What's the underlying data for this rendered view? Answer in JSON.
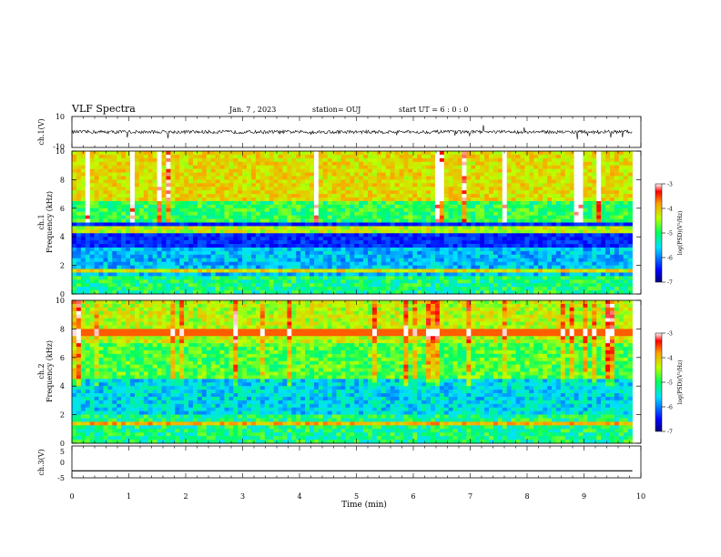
{
  "header": {
    "title": "VLF Spectra",
    "date": "Jan. 7 , 2023",
    "station": "station= OUJ",
    "start": "start UT =  6 : 0 : 0"
  },
  "chart_data": [
    {
      "type": "line",
      "panel": "ch1-waveform",
      "ylabel": "ch.1(V)",
      "ylim": [
        -10,
        10
      ],
      "yticks": [
        10,
        -10
      ],
      "xlim": [
        0,
        10
      ],
      "baseline": 0
    },
    {
      "type": "heatmap",
      "panel": "ch1-spectrogram",
      "ylabel_top": "ch.1",
      "ylabel": "Frequency (kHz)",
      "ylim": [
        0,
        10
      ],
      "yticks": [
        0,
        2,
        4,
        6,
        8,
        10
      ],
      "xlim": [
        0,
        9.85
      ],
      "colorbar": {
        "label": "log(PSD)(V²/Hz)",
        "range": [
          -7,
          -3
        ],
        "ticks": [
          -3,
          -4,
          -5,
          -6,
          -7
        ]
      }
    },
    {
      "type": "heatmap",
      "panel": "ch2-spectrogram",
      "ylabel_top": "ch.2",
      "ylabel": "Frequency (kHz)",
      "ylim": [
        0,
        10
      ],
      "yticks": [
        0,
        2,
        4,
        6,
        8,
        10
      ],
      "xlim": [
        0,
        9.85
      ],
      "colorbar": {
        "label": "log(PSD)(V²/Hz)",
        "range": [
          -7,
          -3
        ],
        "ticks": [
          -3,
          -4,
          -5,
          -6,
          -7
        ]
      }
    },
    {
      "type": "line",
      "panel": "ch3-waveform",
      "ylabel": "ch.3(V)",
      "ylim": [
        -5,
        5
      ],
      "yticks": [
        5,
        0,
        -5
      ],
      "xlim": [
        0,
        10
      ],
      "x": [
        0,
        9.85
      ],
      "y": [
        -2.8,
        -2.8
      ]
    }
  ],
  "xaxis": {
    "label": "Time (min)",
    "ticks": [
      0,
      1,
      2,
      3,
      4,
      5,
      6,
      7,
      8,
      9,
      10
    ]
  }
}
